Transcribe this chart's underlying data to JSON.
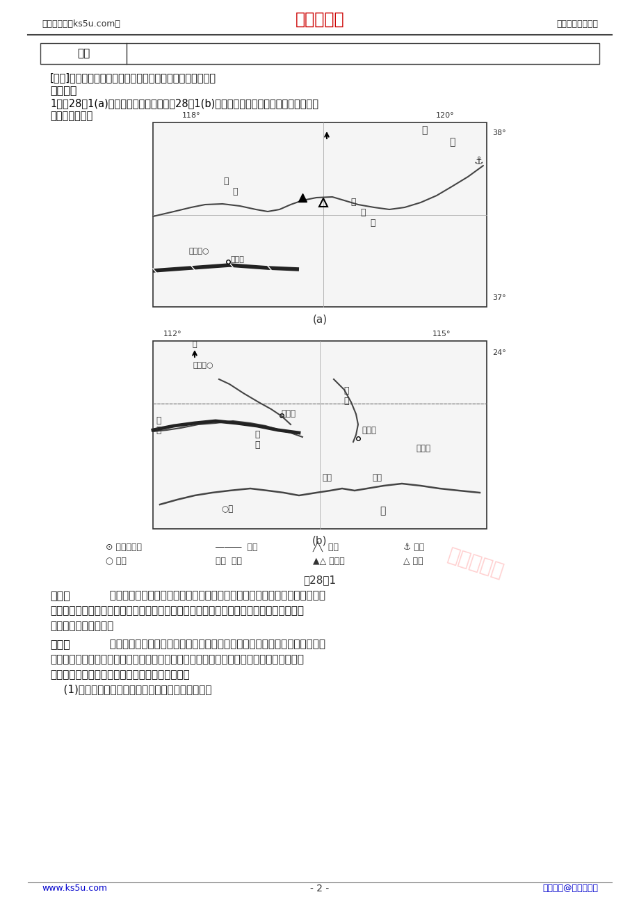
{
  "page_bg": "#ffffff",
  "header_left": "高考资源网（ks5u.com）",
  "header_center": "高考资源网",
  "header_right": "您身边的高考专家",
  "header_center_color": "#cc0000",
  "header_text_color": "#333333",
  "table_label": "要领",
  "answer_text": "[答案]优化产业结构，提高工业集聚效益（扩大产业规模）。",
  "section_title": "规范演练",
  "intro_line1": "1．图28－1(a)为黄河三角洲示意图，图28－1(b)为珠江三角洲示意图。根据图文材料，",
  "intro_line2": "完成下列问题。",
  "map_a_caption": "(a)",
  "map_b_caption": "(b)",
  "figure_caption": "图28－1",
  "material_one_title": "材料一",
  "material_one_line1": "  胜利油田在湤海采取「海油陆采」的方式开采石油，即建设自海岸线向海中延",
  "material_one_line2": "伸的入海道路，在入海道路的末端建设人工岛，并在岛上钒井开采海底石油，这种开采方式",
  "material_one_line3": "可显著降低生产成本。",
  "material_two_title": "材料二",
  "material_two_line1": "  根据经济社会发展现状和资源环境承载能力，广东省将深圳市划为优化开发区",
  "material_two_line2": "域，将汕尾市和英德市划为重点开发区域。深圳市计划转出化学、造纸等行业的部分企业，",
  "material_two_line3": "汕尾市和英德市为承接深圳市转出企业的备选地。",
  "question_text": "    (1)简析「海油陆采」一般在什么自然条件下进行。",
  "footer_left": "www.ks5u.com",
  "footer_center": "- 2 -",
  "footer_right": "版权所有@高考资源网",
  "footer_color": "#0000cc",
  "watermark_text": "高考资源网",
  "watermark_color": "#ffaaaa"
}
